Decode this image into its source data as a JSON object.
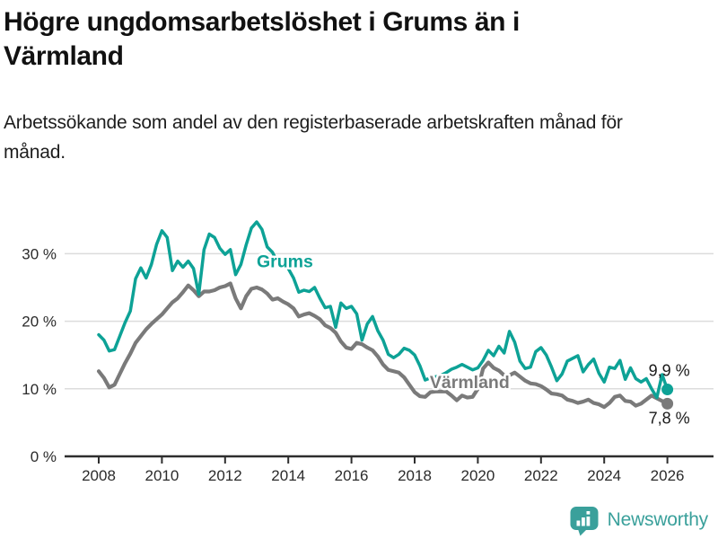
{
  "title": "Högre ungdomsarbetslöshet i Grums än i Värmland",
  "subtitle": "Arbetssökande som andel av den registerbaserade arbetskraften månad för månad.",
  "branding": {
    "logo_text": "Newsworthy",
    "logo_icon": "speech-bubble-bar-chart-icon",
    "logo_color": "#3aa09b"
  },
  "colors": {
    "grums_line": "#0da296",
    "varmland_line": "#7a7a7a",
    "gridline": "#dcdcdc",
    "axis": "#2e2e2e",
    "tick_text": "#2b2b2b",
    "annotation_text": "#1a1a1a",
    "background": "#ffffff"
  },
  "chart_data": {
    "type": "line",
    "x_unit": "year (monthly observations)",
    "x_start": 2008.0,
    "x_step_years": 0.166667,
    "x_tick_values": [
      2008,
      2010,
      2012,
      2014,
      2016,
      2018,
      2020,
      2022,
      2024,
      2026
    ],
    "x_tick_labels": [
      "2008",
      "2010",
      "2012",
      "2014",
      "2016",
      "2018",
      "2020",
      "2022",
      "2024",
      "2026"
    ],
    "y_tick_values": [
      0,
      10,
      20,
      30
    ],
    "y_tick_labels": [
      "0 %",
      "10 %",
      "20 %",
      "30 %"
    ],
    "ylim": [
      0,
      36.5
    ],
    "xlim": [
      2006.9,
      2027.5
    ],
    "grid": "horizontal",
    "legend_position": "inline-labels",
    "series": [
      {
        "name": "Grums",
        "color": "#0da296",
        "end_label": "9,9 %",
        "end_value": 9.9,
        "label_pos": {
          "x": 2013.0,
          "y": 28.0
        },
        "values": [
          18.0,
          17.2,
          15.6,
          15.8,
          17.8,
          19.8,
          21.5,
          26.3,
          27.9,
          26.4,
          28.4,
          31.4,
          33.4,
          32.4,
          27.5,
          28.9,
          28.0,
          28.9,
          27.8,
          24.0,
          30.6,
          32.9,
          32.4,
          30.8,
          29.9,
          30.6,
          26.9,
          28.4,
          31.3,
          33.8,
          34.7,
          33.6,
          31.0,
          30.2,
          28.7,
          29.1,
          27.8,
          26.4,
          24.3,
          24.6,
          24.4,
          25.0,
          23.4,
          22.0,
          22.2,
          19.1,
          22.7,
          21.9,
          22.2,
          21.1,
          17.2,
          19.6,
          20.7,
          18.6,
          17.2,
          15.1,
          14.6,
          15.1,
          16.0,
          15.7,
          15.0,
          13.4,
          11.3,
          11.6,
          11.8,
          12.0,
          12.4,
          12.9,
          13.2,
          13.6,
          13.2,
          12.8,
          13.1,
          14.2,
          15.7,
          14.9,
          16.3,
          15.3,
          18.5,
          16.9,
          14.1,
          13.0,
          13.2,
          15.5,
          16.1,
          15.0,
          13.2,
          11.2,
          12.2,
          14.1,
          14.5,
          14.9,
          12.5,
          13.6,
          14.4,
          12.3,
          11.0,
          13.2,
          13.0,
          14.2,
          11.4,
          13.1,
          11.5,
          11.0,
          11.5,
          10.0,
          8.7,
          12.1,
          9.9
        ]
      },
      {
        "name": "Värmland",
        "color": "#7a7a7a",
        "end_label": "7,8 %",
        "end_value": 7.8,
        "label_pos": {
          "x": 2018.48,
          "y": 10.1
        },
        "values": [
          12.6,
          11.6,
          10.2,
          10.6,
          12.2,
          13.8,
          15.2,
          16.8,
          17.8,
          18.8,
          19.6,
          20.3,
          21.0,
          21.9,
          22.8,
          23.4,
          24.3,
          25.3,
          24.6,
          23.7,
          24.4,
          24.4,
          24.6,
          25.0,
          25.2,
          25.6,
          23.4,
          21.9,
          23.7,
          24.8,
          25.0,
          24.7,
          24.1,
          23.2,
          23.4,
          22.9,
          22.5,
          21.9,
          20.7,
          21.0,
          21.2,
          20.8,
          20.3,
          19.4,
          19.0,
          18.3,
          17.0,
          16.1,
          15.9,
          16.8,
          16.6,
          16.1,
          15.7,
          14.8,
          13.6,
          12.8,
          12.6,
          12.4,
          11.7,
          10.6,
          9.5,
          8.9,
          8.8,
          9.5,
          9.6,
          9.6,
          9.6,
          9.0,
          8.3,
          9.0,
          8.7,
          8.8,
          10.0,
          13.0,
          13.9,
          13.1,
          12.7,
          12.0,
          12.0,
          12.4,
          11.8,
          11.2,
          10.8,
          10.7,
          10.4,
          9.9,
          9.3,
          9.2,
          9.0,
          8.4,
          8.2,
          7.9,
          8.1,
          8.4,
          7.9,
          7.7,
          7.3,
          7.9,
          8.8,
          9.0,
          8.2,
          8.1,
          7.5,
          7.8,
          8.4,
          9.0,
          8.6,
          8.2,
          7.8
        ]
      }
    ]
  }
}
